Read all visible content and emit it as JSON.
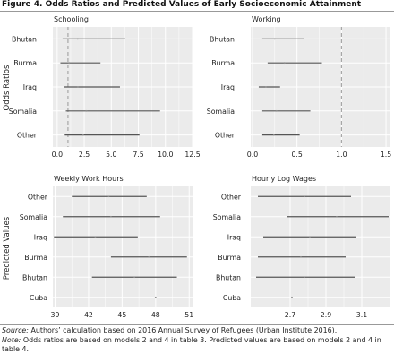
{
  "figure": {
    "title": "Figure 4. Odds Ratios and Predicted Values of Early Socioeconomic Attainment",
    "source_label": "Source:",
    "source_text": " Authors’ calculation based on 2016 Annual Survey of Refugees (Urban Institute 2016).",
    "note_label": "Note:",
    "note_text": " Odds ratios are based on models 2 and 4 in table 3. Predicted values are based on models 2 and 4 in table 4."
  },
  "row_labels": {
    "top": "Odds Ratios",
    "bottom": "Predicted Values"
  },
  "colors": {
    "panel_bg": "#ebebeb",
    "grid": "#ffffff",
    "bar": "#555555",
    "point": "#8a8a8a",
    "reference_line": "#999999",
    "text": "#222222"
  },
  "chart_data": [
    {
      "type": "interval",
      "title": "Schooling",
      "categories": [
        "Bhutan",
        "Burma",
        "Iraq",
        "Somalia",
        "Other"
      ],
      "xlim": [
        -0.4,
        12.5
      ],
      "xticks": [
        0.0,
        2.5,
        5.0,
        7.5,
        10.0,
        12.5
      ],
      "tick_labels": [
        "0.0",
        "2.5",
        "5.0",
        "7.5",
        "10.0",
        "12.5"
      ],
      "reference_line": 1.0,
      "grid": true,
      "intervals": [
        {
          "category": "Bhutan",
          "low": 0.5,
          "high": 6.3,
          "estimate": 1.9
        },
        {
          "category": "Burma",
          "low": 0.3,
          "high": 4.0,
          "estimate": 1.1
        },
        {
          "category": "Iraq",
          "low": 0.6,
          "high": 5.8,
          "estimate": 1.9
        },
        {
          "category": "Somalia",
          "low": 0.8,
          "high": 9.5,
          "estimate": 2.7
        },
        {
          "category": "Other",
          "low": 0.7,
          "high": 7.6,
          "estimate": 2.4
        }
      ]
    },
    {
      "type": "interval",
      "title": "Working",
      "categories": [
        "Bhutan",
        "Burma",
        "Iraq",
        "Somalia",
        "Other"
      ],
      "xlim": [
        -0.02,
        1.55
      ],
      "xticks": [
        0.0,
        0.5,
        1.0,
        1.5
      ],
      "tick_labels": [
        "0.0",
        "0.5",
        "1.0",
        "1.5"
      ],
      "reference_line": 1.0,
      "grid": true,
      "intervals": [
        {
          "category": "Bhutan",
          "low": 0.11,
          "high": 0.58,
          "estimate": 0.25
        },
        {
          "category": "Burma",
          "low": 0.17,
          "high": 0.78,
          "estimate": 0.36
        },
        {
          "category": "Iraq",
          "low": 0.07,
          "high": 0.31,
          "estimate": 0.15
        },
        {
          "category": "Somalia",
          "low": 0.11,
          "high": 0.65,
          "estimate": 0.27
        },
        {
          "category": "Other",
          "low": 0.11,
          "high": 0.53,
          "estimate": 0.24
        }
      ]
    },
    {
      "type": "interval",
      "title": "Weekly Work Hours",
      "categories": [
        "Other",
        "Somalia",
        "Iraq",
        "Burma",
        "Bhutan",
        "Cuba"
      ],
      "xlim": [
        38.8,
        51.3
      ],
      "xticks": [
        39,
        42,
        45,
        48,
        51
      ],
      "tick_labels": [
        "39",
        "42",
        "45",
        "48",
        "51"
      ],
      "grid": true,
      "intervals": [
        {
          "category": "Other",
          "low": 40.5,
          "high": 47.2,
          "estimate": 43.8
        },
        {
          "category": "Somalia",
          "low": 39.7,
          "high": 48.4,
          "estimate": 44.0
        },
        {
          "category": "Iraq",
          "low": 38.9,
          "high": 46.4,
          "estimate": 42.6
        },
        {
          "category": "Burma",
          "low": 44.0,
          "high": 50.8,
          "estimate": 47.4
        },
        {
          "category": "Bhutan",
          "low": 42.3,
          "high": 49.9,
          "estimate": 46.1
        },
        {
          "category": "Cuba",
          "low": 48.0,
          "high": 48.0,
          "estimate": 48.0
        }
      ]
    },
    {
      "type": "interval",
      "title": "Hourly Log Wages",
      "categories": [
        "Other",
        "Somalia",
        "Iraq",
        "Burma",
        "Bhutan",
        "Cuba"
      ],
      "xlim": [
        2.48,
        3.26
      ],
      "xticks": [
        2.7,
        2.9,
        3.1
      ],
      "tick_labels": [
        "2.7",
        "2.9",
        "3.1"
      ],
      "grid": true,
      "intervals": [
        {
          "category": "Other",
          "low": 2.52,
          "high": 3.04,
          "estimate": 2.78
        },
        {
          "category": "Somalia",
          "low": 2.68,
          "high": 3.25,
          "estimate": 2.96
        },
        {
          "category": "Iraq",
          "low": 2.55,
          "high": 3.07,
          "estimate": 2.81
        },
        {
          "category": "Burma",
          "low": 2.52,
          "high": 3.01,
          "estimate": 2.76
        },
        {
          "category": "Bhutan",
          "low": 2.51,
          "high": 3.06,
          "estimate": 2.78
        },
        {
          "category": "Cuba",
          "low": 2.71,
          "high": 2.71,
          "estimate": 2.71
        }
      ]
    }
  ]
}
